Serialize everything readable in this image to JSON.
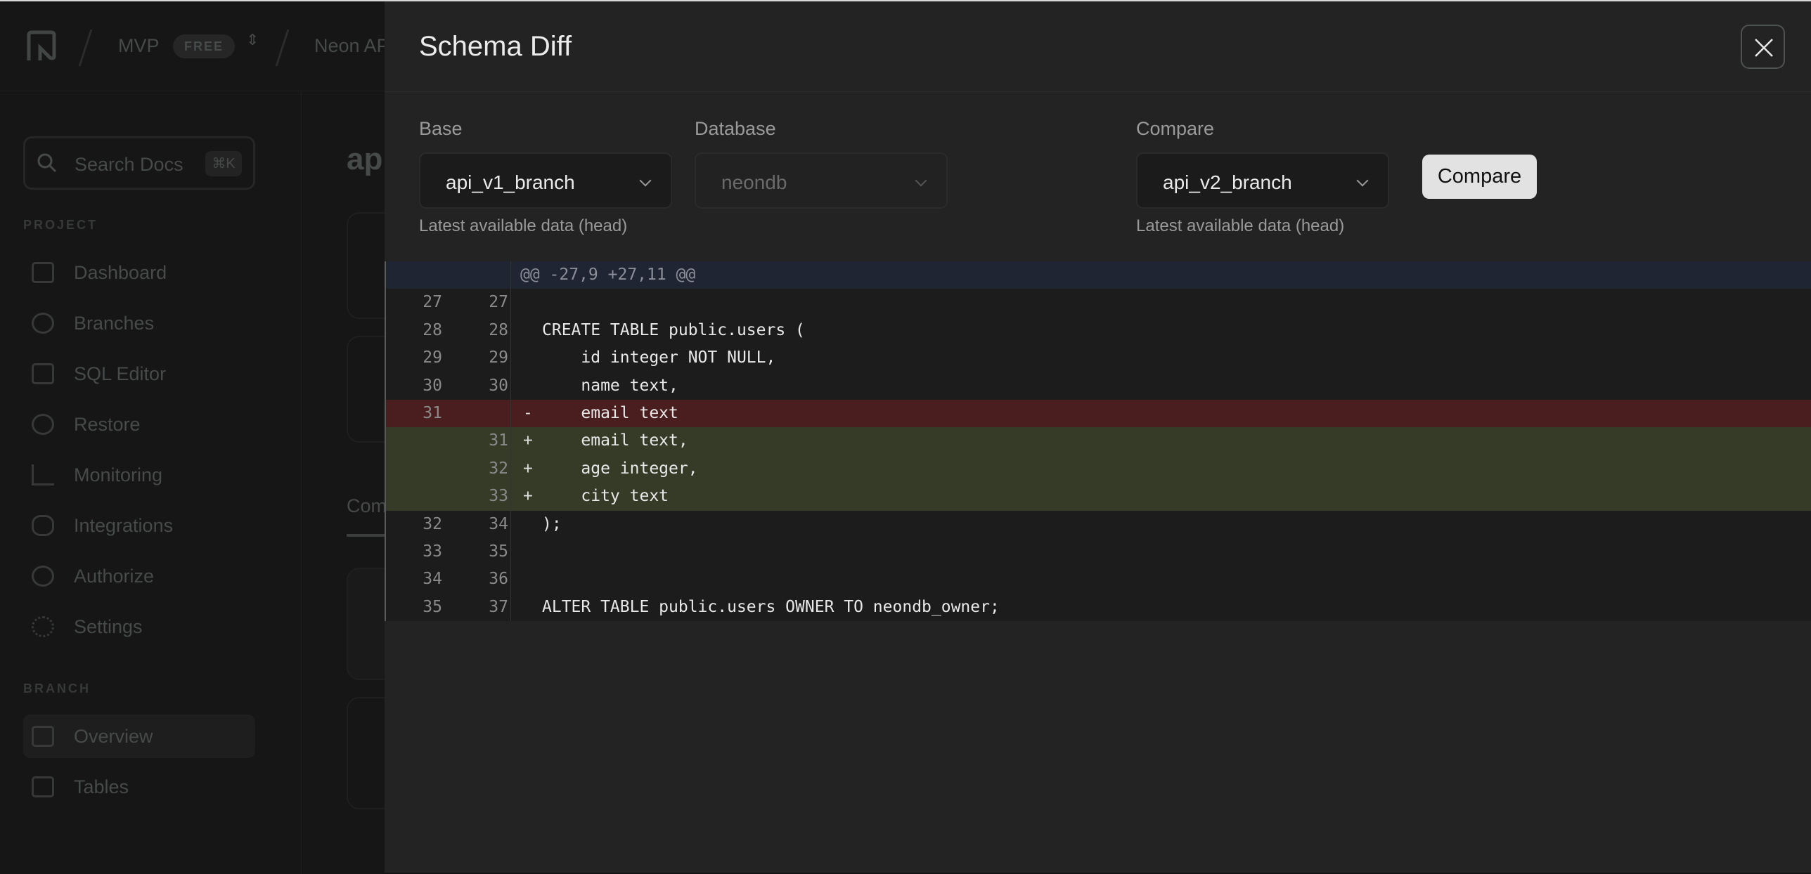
{
  "app": {
    "header": {
      "project": "MVP",
      "plan_badge": "FREE",
      "crumb": "Neon AP"
    },
    "search": {
      "label": "Search Docs",
      "shortcut": "⌘K"
    },
    "sections": {
      "project": "PROJECT",
      "branch": "BRANCH"
    },
    "project_nav": [
      {
        "label": "Dashboard",
        "icon": "dashboard-icon"
      },
      {
        "label": "Branches",
        "icon": "branches-icon"
      },
      {
        "label": "SQL Editor",
        "icon": "sql-editor-icon"
      },
      {
        "label": "Restore",
        "icon": "restore-icon"
      },
      {
        "label": "Monitoring",
        "icon": "monitoring-icon"
      },
      {
        "label": "Integrations",
        "icon": "integrations-icon"
      },
      {
        "label": "Authorize",
        "icon": "authorize-icon"
      },
      {
        "label": "Settings",
        "icon": "gear-icon"
      }
    ],
    "branch_nav": [
      {
        "label": "Overview",
        "icon": "overview-icon",
        "active": true
      },
      {
        "label": "Tables",
        "icon": "tables-icon"
      }
    ],
    "main_heading": "ap",
    "tab": "Com"
  },
  "modal": {
    "title": "Schema Diff",
    "base": {
      "label": "Base",
      "value": "api_v1_branch",
      "help": "Latest available data (head)"
    },
    "database": {
      "label": "Database",
      "value": "neondb",
      "disabled": true
    },
    "compare": {
      "label": "Compare",
      "value": "api_v2_branch",
      "help": "Latest available data (head)"
    },
    "compare_button": "Compare",
    "colors": {
      "deleted": "#4a1e1e",
      "added": "#363b28",
      "hunk": "#1f2532"
    },
    "diff": {
      "hunk": "@@ -27,9 +27,11 @@",
      "lines": [
        {
          "old": "27",
          "new": "27",
          "marker": "",
          "text": "",
          "type": "context"
        },
        {
          "old": "28",
          "new": "28",
          "marker": "",
          "text": "CREATE TABLE public.users (",
          "type": "context"
        },
        {
          "old": "29",
          "new": "29",
          "marker": "",
          "text": "    id integer NOT NULL,",
          "type": "context"
        },
        {
          "old": "30",
          "new": "30",
          "marker": "",
          "text": "    name text,",
          "type": "context"
        },
        {
          "old": "31",
          "new": "",
          "marker": "-",
          "text": "    email text",
          "type": "del"
        },
        {
          "old": "",
          "new": "31",
          "marker": "+",
          "text": "    email text,",
          "type": "add"
        },
        {
          "old": "",
          "new": "32",
          "marker": "+",
          "text": "    age integer,",
          "type": "add"
        },
        {
          "old": "",
          "new": "33",
          "marker": "+",
          "text": "    city text",
          "type": "add"
        },
        {
          "old": "32",
          "new": "34",
          "marker": "",
          "text": ");",
          "type": "context"
        },
        {
          "old": "33",
          "new": "35",
          "marker": "",
          "text": "",
          "type": "context"
        },
        {
          "old": "34",
          "new": "36",
          "marker": "",
          "text": "",
          "type": "context"
        },
        {
          "old": "35",
          "new": "37",
          "marker": "",
          "text": "ALTER TABLE public.users OWNER TO neondb_owner;",
          "type": "context"
        }
      ]
    }
  }
}
